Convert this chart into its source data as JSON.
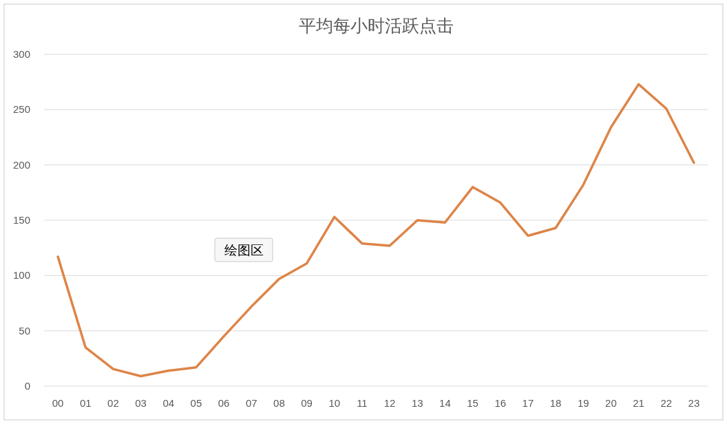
{
  "chart_data": {
    "type": "line",
    "title": "平均每小时活跃点击",
    "categories": [
      "00",
      "01",
      "02",
      "03",
      "04",
      "05",
      "06",
      "07",
      "08",
      "09",
      "10",
      "11",
      "12",
      "13",
      "14",
      "15",
      "16",
      "17",
      "18",
      "19",
      "20",
      "21",
      "22",
      "23"
    ],
    "series": [
      {
        "color": "#dd8447",
        "values": [
          117,
          35,
          15.5,
          9,
          14,
          17,
          45,
          72,
          97,
          111,
          153,
          129,
          127,
          150,
          148,
          180,
          166,
          136,
          143,
          182,
          234,
          273,
          251,
          202
        ]
      }
    ],
    "ylim": [
      0,
      300
    ],
    "yticks": [
      0,
      50,
      100,
      150,
      200,
      250,
      300
    ],
    "grid": "y",
    "marker": "none",
    "line_style": "solid",
    "annotations": [
      "绘图区"
    ]
  }
}
